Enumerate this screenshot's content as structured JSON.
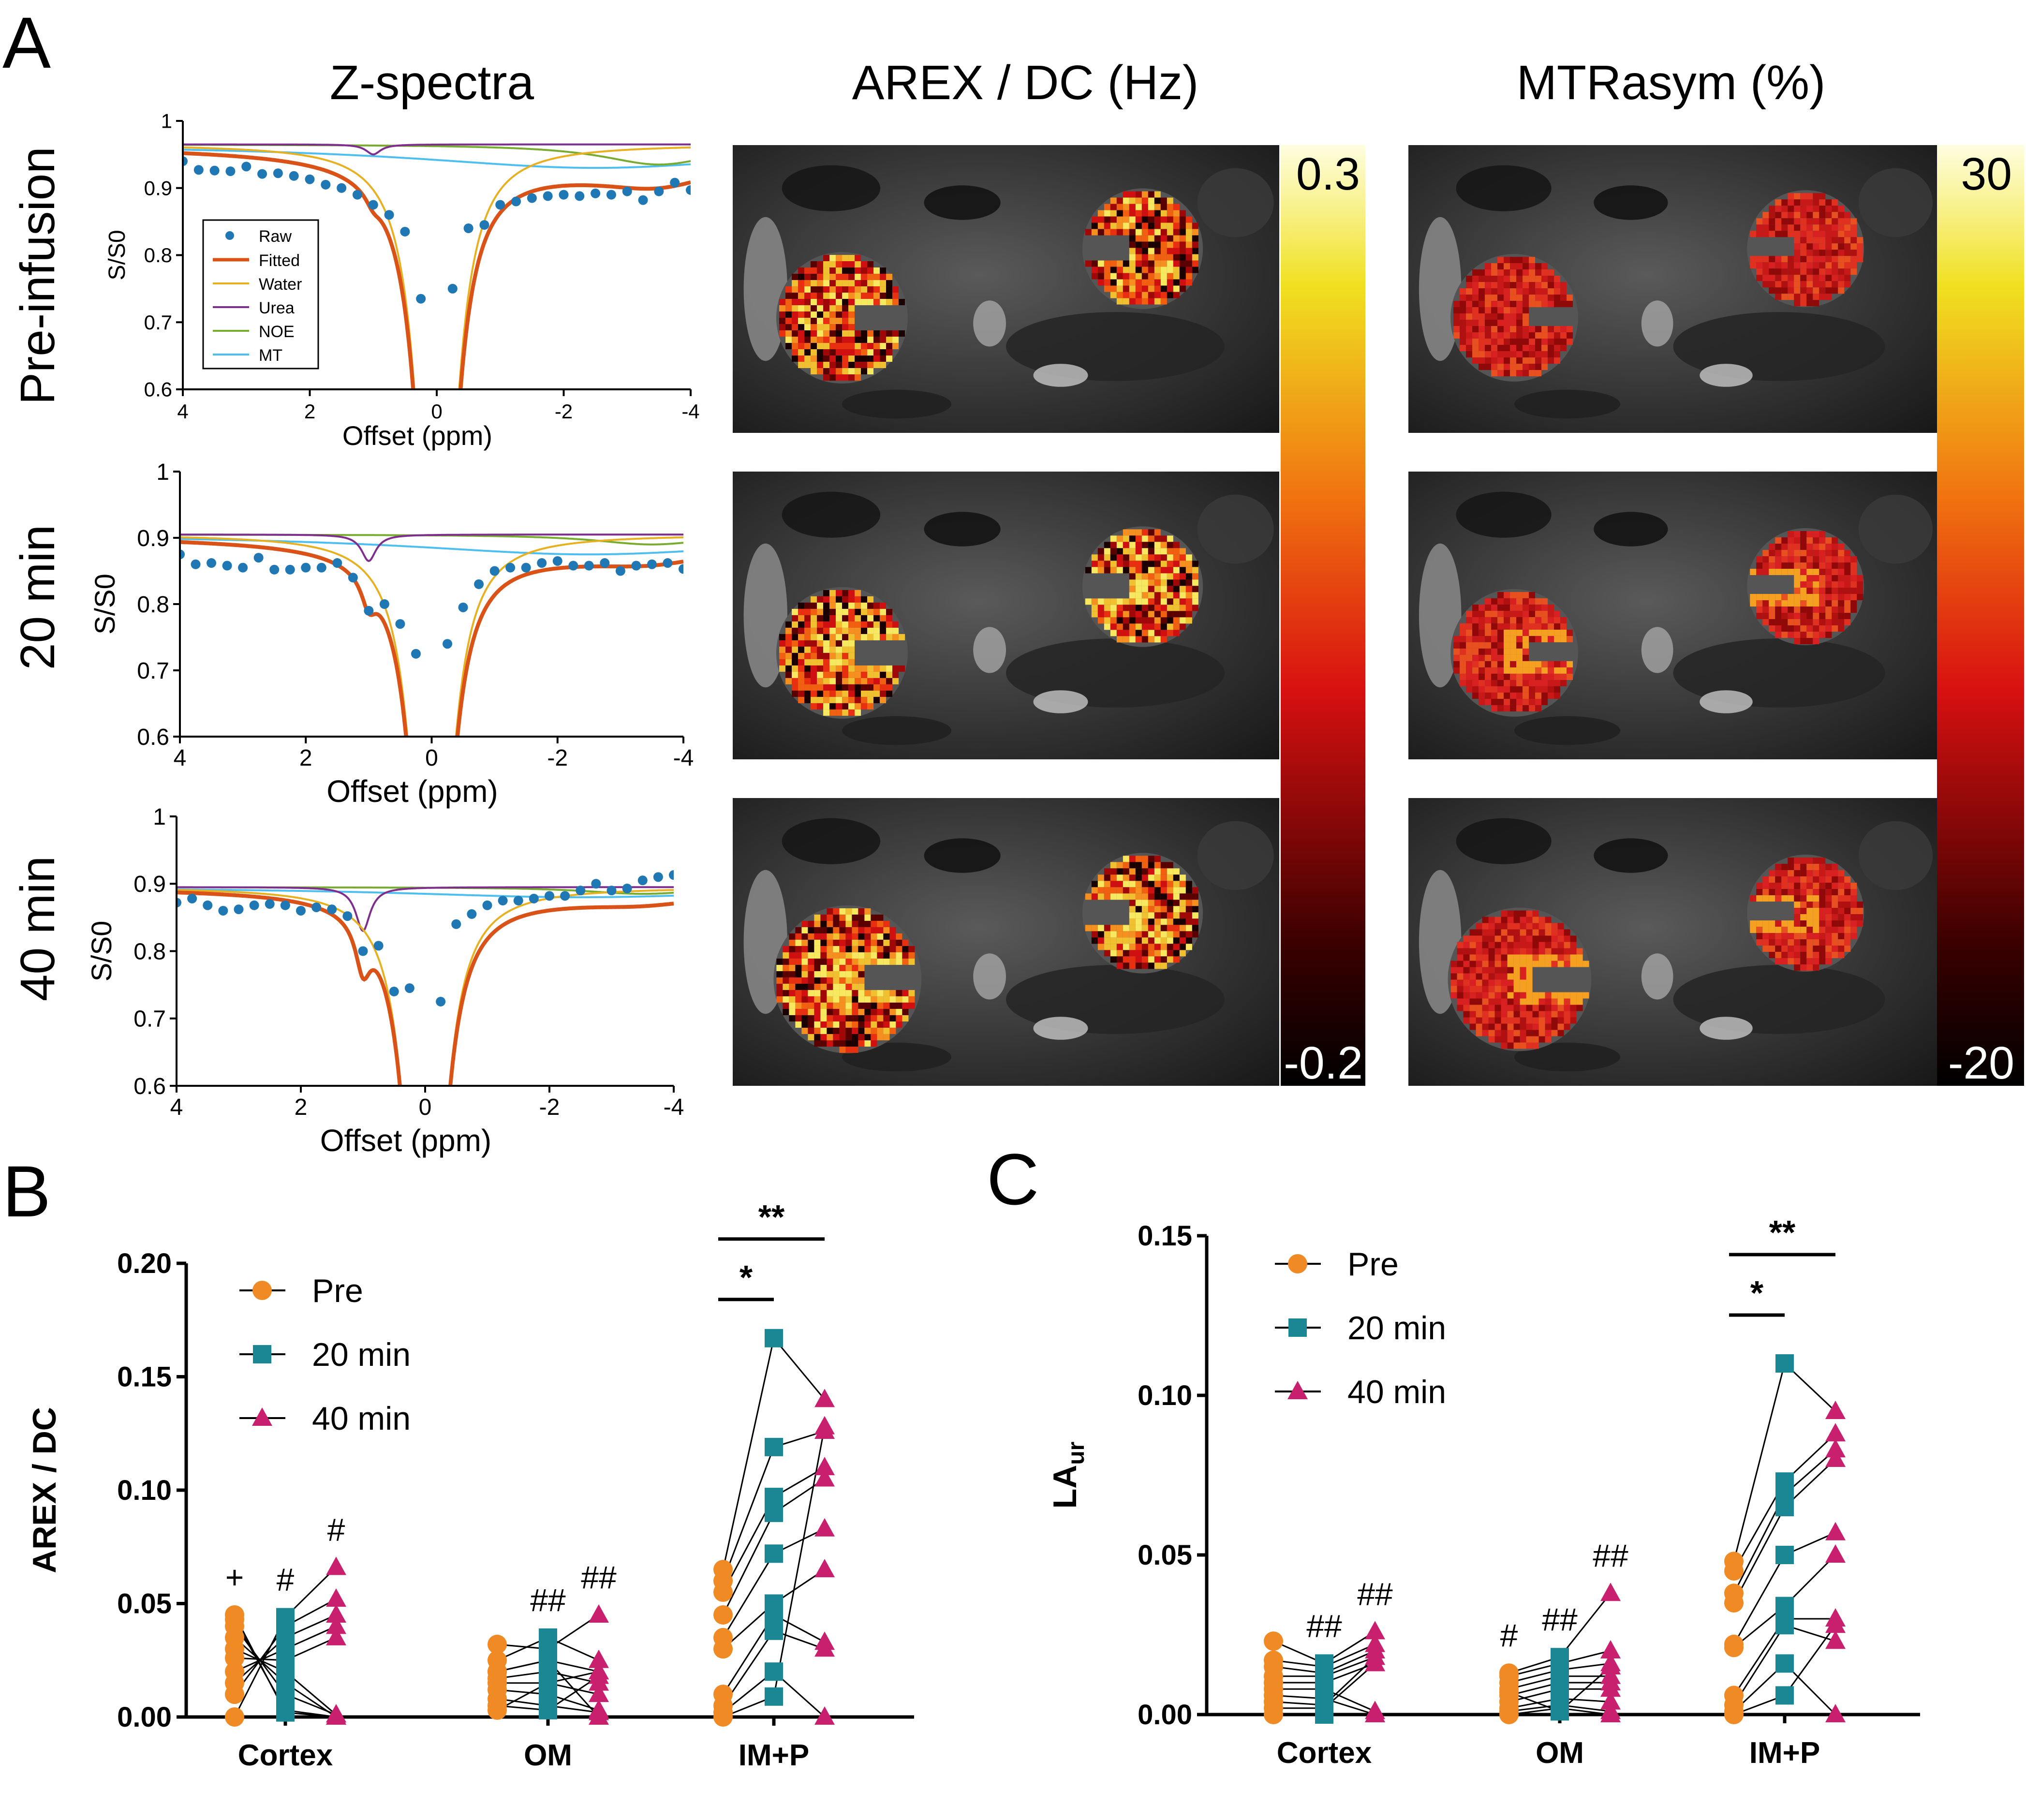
{
  "panel_letters": [
    "A",
    "B",
    "C"
  ],
  "headers": {
    "zspectra": "Z-spectra",
    "arex": "AREX / DC (Hz)",
    "mtr": "MTRasym (%)"
  },
  "row_labels": [
    "Pre-infusion",
    "20 min",
    "40 min"
  ],
  "colorbars": {
    "arex": {
      "max": "0.3",
      "min": "-0.2"
    },
    "mtr": {
      "max": "30",
      "min": "-20"
    }
  },
  "colors": {
    "raw": "#1f77b4",
    "fitted": "#d95319",
    "water": "#e6b020",
    "urea": "#7e2f8e",
    "noe": "#77ac30",
    "mt": "#4dbeee",
    "pre": "#f08a24",
    "min20": "#1b8795",
    "min40": "#c8206e"
  },
  "chart_data": [
    {
      "type": "line",
      "panel": "A",
      "row": "Pre-infusion",
      "title": "Z-spectra",
      "xlabel": "Offset (ppm)",
      "ylabel": "S/S0",
      "xlim": [
        4,
        -4
      ],
      "ylim": [
        0.6,
        1.0
      ],
      "xticks": [
        "4",
        "2",
        "0",
        "-2",
        "-4"
      ],
      "yticks": [
        "0.6",
        "0.7",
        "0.8",
        "0.9",
        "1"
      ],
      "legend": [
        "Raw",
        "Fitted",
        "Water",
        "Urea",
        "NOE",
        "MT"
      ],
      "params": {
        "base": 0.965,
        "mt_amp": 0.035,
        "mt_width": 7.0,
        "urea_amp": 0.015,
        "noe_amp": 0.03
      },
      "raw_points": [
        [
          4.0,
          0.94
        ],
        [
          3.75,
          0.927
        ],
        [
          3.5,
          0.926
        ],
        [
          3.25,
          0.925
        ],
        [
          3.0,
          0.932
        ],
        [
          2.75,
          0.921
        ],
        [
          2.5,
          0.922
        ],
        [
          2.25,
          0.918
        ],
        [
          2.0,
          0.913
        ],
        [
          1.75,
          0.905
        ],
        [
          1.5,
          0.9
        ],
        [
          1.25,
          0.89
        ],
        [
          1.0,
          0.875
        ],
        [
          0.75,
          0.86
        ],
        [
          0.5,
          0.835
        ],
        [
          0.25,
          0.735
        ],
        [
          -0.25,
          0.75
        ],
        [
          -0.5,
          0.84
        ],
        [
          -0.75,
          0.845
        ],
        [
          -1.0,
          0.875
        ],
        [
          -1.25,
          0.88
        ],
        [
          -1.5,
          0.885
        ],
        [
          -1.75,
          0.888
        ],
        [
          -2.0,
          0.89
        ],
        [
          -2.25,
          0.888
        ],
        [
          -2.5,
          0.892
        ],
        [
          -2.75,
          0.89
        ],
        [
          -3.0,
          0.895
        ],
        [
          -3.25,
          0.882
        ],
        [
          -3.5,
          0.895
        ],
        [
          -3.75,
          0.908
        ],
        [
          -4.0,
          0.897
        ]
      ]
    },
    {
      "type": "line",
      "panel": "A",
      "row": "20 min",
      "xlabel": "Offset (ppm)",
      "ylabel": "S/S0",
      "xlim": [
        4,
        -4
      ],
      "ylim": [
        0.6,
        1.0
      ],
      "xticks": [
        "4",
        "2",
        "0",
        "-2",
        "-4"
      ],
      "yticks": [
        "0.6",
        "0.7",
        "0.8",
        "0.9",
        "1"
      ],
      "params": {
        "base": 0.905,
        "mt_amp": 0.03,
        "mt_width": 7.0,
        "urea_amp": 0.04,
        "noe_amp": 0.015
      },
      "raw_points": [
        [
          4.0,
          0.875
        ],
        [
          3.75,
          0.86
        ],
        [
          3.5,
          0.862
        ],
        [
          3.25,
          0.858
        ],
        [
          3.0,
          0.855
        ],
        [
          2.75,
          0.87
        ],
        [
          2.5,
          0.852
        ],
        [
          2.25,
          0.852
        ],
        [
          2.0,
          0.855
        ],
        [
          1.75,
          0.855
        ],
        [
          1.5,
          0.862
        ],
        [
          1.25,
          0.84
        ],
        [
          1.0,
          0.79
        ],
        [
          0.75,
          0.8
        ],
        [
          0.5,
          0.77
        ],
        [
          0.25,
          0.725
        ],
        [
          -0.25,
          0.74
        ],
        [
          -0.5,
          0.795
        ],
        [
          -0.75,
          0.83
        ],
        [
          -1.0,
          0.85
        ],
        [
          -1.25,
          0.855
        ],
        [
          -1.5,
          0.855
        ],
        [
          -1.75,
          0.862
        ],
        [
          -2.0,
          0.865
        ],
        [
          -2.25,
          0.858
        ],
        [
          -2.5,
          0.858
        ],
        [
          -2.75,
          0.862
        ],
        [
          -3.0,
          0.85
        ],
        [
          -3.25,
          0.858
        ],
        [
          -3.5,
          0.86
        ],
        [
          -3.75,
          0.862
        ],
        [
          -4.0,
          0.853
        ]
      ]
    },
    {
      "type": "line",
      "panel": "A",
      "row": "40 min",
      "xlabel": "Offset (ppm)",
      "ylabel": "S/S0",
      "xlim": [
        4,
        -4
      ],
      "ylim": [
        0.6,
        1.0
      ],
      "xticks": [
        "4",
        "2",
        "0",
        "-2",
        "-4"
      ],
      "yticks": [
        "0.6",
        "0.7",
        "0.8",
        "0.9",
        "1"
      ],
      "params": {
        "base": 0.895,
        "mt_amp": 0.015,
        "mt_width": 7.0,
        "urea_amp": 0.065,
        "noe_amp": 0.01
      },
      "raw_points": [
        [
          4.0,
          0.872
        ],
        [
          3.75,
          0.878
        ],
        [
          3.5,
          0.868
        ],
        [
          3.25,
          0.86
        ],
        [
          3.0,
          0.862
        ],
        [
          2.75,
          0.868
        ],
        [
          2.5,
          0.87
        ],
        [
          2.25,
          0.868
        ],
        [
          2.0,
          0.86
        ],
        [
          1.75,
          0.865
        ],
        [
          1.5,
          0.862
        ],
        [
          1.25,
          0.852
        ],
        [
          1.0,
          0.8
        ],
        [
          0.75,
          0.808
        ],
        [
          0.5,
          0.74
        ],
        [
          0.25,
          0.745
        ],
        [
          -0.25,
          0.725
        ],
        [
          -0.5,
          0.84
        ],
        [
          -0.75,
          0.855
        ],
        [
          -1.0,
          0.868
        ],
        [
          -1.25,
          0.875
        ],
        [
          -1.5,
          0.875
        ],
        [
          -1.75,
          0.878
        ],
        [
          -2.0,
          0.882
        ],
        [
          -2.25,
          0.882
        ],
        [
          -2.5,
          0.89
        ],
        [
          -2.75,
          0.9
        ],
        [
          -3.0,
          0.89
        ],
        [
          -3.25,
          0.893
        ],
        [
          -3.5,
          0.905
        ],
        [
          -3.75,
          0.91
        ],
        [
          -4.0,
          0.913
        ]
      ]
    },
    {
      "type": "scatter",
      "panel": "B",
      "ylabel": "AREX / DC",
      "ylim": [
        0,
        0.2
      ],
      "yticks": [
        "0.00",
        "0.05",
        "0.10",
        "0.15",
        "0.20"
      ],
      "groups": [
        "Cortex",
        "OM",
        "IM+P"
      ],
      "legend": [
        "Pre",
        "20 min",
        "40 min"
      ],
      "series": [
        {
          "group": "Cortex",
          "pre": [
            0.0,
            0.01,
            0.015,
            0.02,
            0.026,
            0.03,
            0.035,
            0.04,
            0.043,
            0.045
          ],
          "min20": [
            0.044,
            0.04,
            0.035,
            0.03,
            0.025,
            0.02,
            0.015,
            0.01,
            0.003,
            0.002
          ],
          "min40": [
            0.066,
            0.052,
            0.045,
            0.04,
            0.035,
            0.001,
            0.0,
            0.001,
            0.0,
            0.0
          ]
        },
        {
          "group": "OM",
          "pre": [
            0.032,
            0.025,
            0.02,
            0.017,
            0.015,
            0.012,
            0.008,
            0.005,
            0.003,
            0.02
          ],
          "min20": [
            0.03,
            0.035,
            0.025,
            0.02,
            0.015,
            0.01,
            0.005,
            0.003,
            0.015,
            0.025
          ],
          "min40": [
            0.045,
            0.025,
            0.02,
            0.015,
            0.01,
            0.003,
            0.002,
            0.018,
            0.02,
            0.0
          ]
        },
        {
          "group": "IM+P",
          "pre": [
            0.065,
            0.06,
            0.055,
            0.045,
            0.035,
            0.03,
            0.01,
            0.005,
            0.002,
            0.0
          ],
          "min20": [
            0.167,
            0.119,
            0.097,
            0.09,
            0.072,
            0.05,
            0.045,
            0.038,
            0.02,
            0.009
          ],
          "min40": [
            0.14,
            0.126,
            0.11,
            0.105,
            0.083,
            0.065,
            0.033,
            0.03,
            0.0,
            0.128
          ]
        }
      ],
      "annotations": [
        {
          "group": "Cortex",
          "slot": "pre",
          "text": "+"
        },
        {
          "group": "Cortex",
          "slot": "min20",
          "text": "#"
        },
        {
          "group": "Cortex",
          "slot": "min40",
          "text": "#"
        },
        {
          "group": "OM",
          "slot": "min20",
          "text": "##"
        },
        {
          "group": "OM",
          "slot": "min40",
          "text": "##"
        }
      ],
      "significance": [
        {
          "from": "pre",
          "to": "min20",
          "text": "*"
        },
        {
          "from": "pre",
          "to": "min40",
          "text": "**"
        }
      ]
    },
    {
      "type": "scatter",
      "panel": "C",
      "ylabel": "LA",
      "ylabel_sub": "ur",
      "ylim": [
        0,
        0.15
      ],
      "yticks": [
        "0.00",
        "0.05",
        "0.10",
        "0.15"
      ],
      "groups": [
        "Cortex",
        "OM",
        "IM+P"
      ],
      "legend": [
        "Pre",
        "20 min",
        "40 min"
      ],
      "series": [
        {
          "group": "Cortex",
          "pre": [
            0.023,
            0.017,
            0.015,
            0.012,
            0.01,
            0.008,
            0.006,
            0.004,
            0.002,
            0.0
          ],
          "min20": [
            0.016,
            0.015,
            0.013,
            0.012,
            0.01,
            0.008,
            0.005,
            0.003,
            0.002,
            0.0
          ],
          "min40": [
            0.026,
            0.022,
            0.02,
            0.018,
            0.016,
            0.001,
            0.0,
            0.018,
            0.016,
            0.0
          ]
        },
        {
          "group": "OM",
          "pre": [
            0.013,
            0.012,
            0.01,
            0.008,
            0.006,
            0.004,
            0.002,
            0.001,
            0.0,
            0.007
          ],
          "min20": [
            0.018,
            0.016,
            0.014,
            0.012,
            0.01,
            0.008,
            0.005,
            0.003,
            0.002,
            0.001
          ],
          "min40": [
            0.038,
            0.02,
            0.016,
            0.012,
            0.01,
            0.008,
            0.004,
            0.001,
            0.0,
            0.015
          ]
        },
        {
          "group": "IM+P",
          "pre": [
            0.048,
            0.045,
            0.038,
            0.035,
            0.022,
            0.021,
            0.006,
            0.003,
            0.001,
            0.0
          ],
          "min20": [
            0.11,
            0.073,
            0.069,
            0.065,
            0.05,
            0.034,
            0.03,
            0.028,
            0.016,
            0.006
          ],
          "min40": [
            0.095,
            0.088,
            0.083,
            0.08,
            0.057,
            0.05,
            0.03,
            0.023,
            0.0,
            0.028
          ]
        }
      ],
      "annotations": [
        {
          "group": "Cortex",
          "slot": "min20",
          "text": "##"
        },
        {
          "group": "Cortex",
          "slot": "min40",
          "text": "##"
        },
        {
          "group": "OM",
          "slot": "pre",
          "text": "#"
        },
        {
          "group": "OM",
          "slot": "min20",
          "text": "##"
        },
        {
          "group": "OM",
          "slot": "min40",
          "text": "##"
        }
      ],
      "significance": [
        {
          "from": "pre",
          "to": "min20",
          "text": "*"
        },
        {
          "from": "pre",
          "to": "min40",
          "text": "**"
        }
      ]
    }
  ]
}
